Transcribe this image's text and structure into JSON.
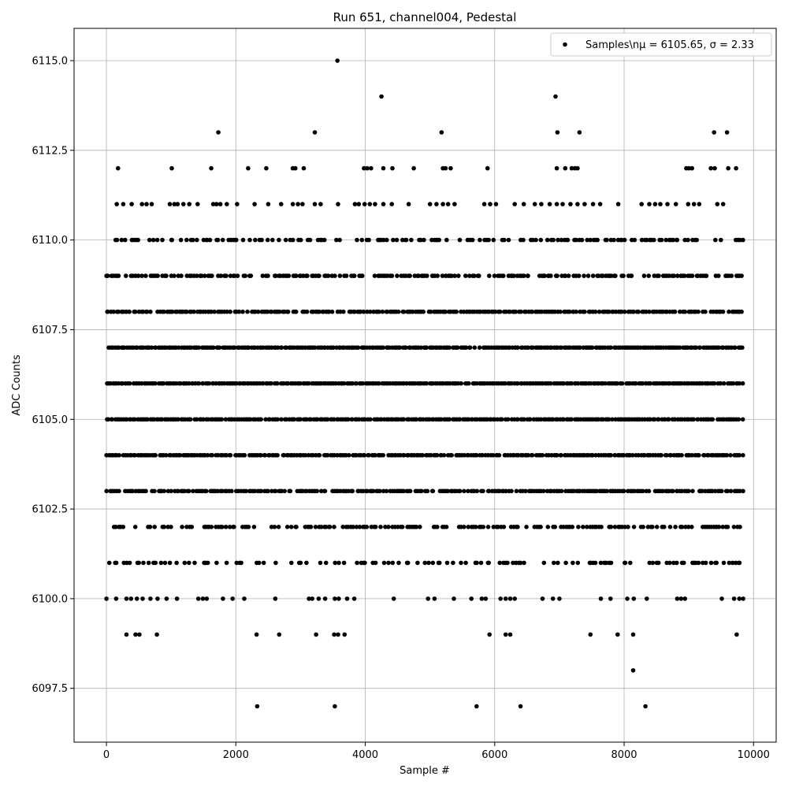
{
  "chart_data": {
    "type": "scatter",
    "title": "Run 651, channel004, Pedestal",
    "xlabel": "Sample #",
    "ylabel": "ADC Counts",
    "xlim": [
      -500,
      10350
    ],
    "ylim": [
      6096.0,
      6115.9
    ],
    "xticks": [
      0,
      2000,
      4000,
      6000,
      8000,
      10000
    ],
    "xtick_labels": [
      "0",
      "2000",
      "4000",
      "6000",
      "8000",
      "10000"
    ],
    "yticks": [
      6097.5,
      6100.0,
      6102.5,
      6105.0,
      6107.5,
      6110.0,
      6112.5,
      6115.0
    ],
    "ytick_labels": [
      "6097.5",
      "6100.0",
      "6102.5",
      "6105.0",
      "6107.5",
      "6110.0",
      "6112.5",
      "6115.0"
    ],
    "grid": true,
    "legend_position": "top-right",
    "series": [
      {
        "name": "Samples\\nμ = 6105.65, σ = 2.33",
        "color": "#000000",
        "marker": "circle",
        "bands": [
          {
            "y": 6110,
            "density": 0.5
          },
          {
            "y": 6109,
            "density": 0.75
          },
          {
            "y": 6108,
            "density": 0.85
          },
          {
            "y": 6107,
            "density": 0.97
          },
          {
            "y": 6106,
            "density": 0.98
          },
          {
            "y": 6105,
            "density": 0.96
          },
          {
            "y": 6104,
            "density": 0.92
          },
          {
            "y": 6103,
            "density": 0.85
          },
          {
            "y": 6102,
            "density": 0.55
          },
          {
            "y": 6101,
            "density": 0.4
          }
        ],
        "points": [
          [
            3570,
            6115
          ],
          [
            4250,
            6114
          ],
          [
            6940,
            6114
          ],
          [
            1730,
            6113
          ],
          [
            3220,
            6113
          ],
          [
            5180,
            6113
          ],
          [
            6970,
            6113
          ],
          [
            7310,
            6113
          ],
          [
            9390,
            6113
          ],
          [
            9590,
            6113
          ],
          [
            180,
            6112
          ],
          [
            1010,
            6112
          ],
          [
            1620,
            6112
          ],
          [
            2190,
            6112
          ],
          [
            2470,
            6112
          ],
          [
            2880,
            6112
          ],
          [
            2920,
            6112
          ],
          [
            3050,
            6112
          ],
          [
            3980,
            6112
          ],
          [
            4030,
            6112
          ],
          [
            4090,
            6112
          ],
          [
            4280,
            6112
          ],
          [
            4420,
            6112
          ],
          [
            4750,
            6112
          ],
          [
            5200,
            6112
          ],
          [
            5240,
            6112
          ],
          [
            5320,
            6112
          ],
          [
            5890,
            6112
          ],
          [
            6960,
            6112
          ],
          [
            7090,
            6112
          ],
          [
            7190,
            6112
          ],
          [
            7240,
            6112
          ],
          [
            7280,
            6112
          ],
          [
            8960,
            6112
          ],
          [
            9000,
            6112
          ],
          [
            9050,
            6112
          ],
          [
            9340,
            6112
          ],
          [
            9400,
            6112
          ],
          [
            9610,
            6112
          ],
          [
            9730,
            6112
          ],
          [
            160,
            6111
          ],
          [
            260,
            6111
          ],
          [
            390,
            6111
          ],
          [
            550,
            6111
          ],
          [
            620,
            6111
          ],
          [
            700,
            6111
          ],
          [
            980,
            6111
          ],
          [
            1050,
            6111
          ],
          [
            1100,
            6111
          ],
          [
            1190,
            6111
          ],
          [
            1280,
            6111
          ],
          [
            1410,
            6111
          ],
          [
            1650,
            6111
          ],
          [
            1700,
            6111
          ],
          [
            1760,
            6111
          ],
          [
            1860,
            6111
          ],
          [
            2020,
            6111
          ],
          [
            2290,
            6111
          ],
          [
            2500,
            6111
          ],
          [
            2700,
            6111
          ],
          [
            2880,
            6111
          ],
          [
            2960,
            6111
          ],
          [
            3030,
            6111
          ],
          [
            3220,
            6111
          ],
          [
            3310,
            6111
          ],
          [
            3580,
            6111
          ],
          [
            3840,
            6111
          ],
          [
            3900,
            6111
          ],
          [
            3990,
            6111
          ],
          [
            4070,
            6111
          ],
          [
            4150,
            6111
          ],
          [
            4280,
            6111
          ],
          [
            4410,
            6111
          ],
          [
            4670,
            6111
          ],
          [
            5000,
            6111
          ],
          [
            5100,
            6111
          ],
          [
            5200,
            6111
          ],
          [
            5280,
            6111
          ],
          [
            5380,
            6111
          ],
          [
            5840,
            6111
          ],
          [
            5930,
            6111
          ],
          [
            6020,
            6111
          ],
          [
            6310,
            6111
          ],
          [
            6450,
            6111
          ],
          [
            6620,
            6111
          ],
          [
            6720,
            6111
          ],
          [
            6850,
            6111
          ],
          [
            6960,
            6111
          ],
          [
            7050,
            6111
          ],
          [
            7170,
            6111
          ],
          [
            7280,
            6111
          ],
          [
            7390,
            6111
          ],
          [
            7520,
            6111
          ],
          [
            7630,
            6111
          ],
          [
            7910,
            6111
          ],
          [
            8270,
            6111
          ],
          [
            8390,
            6111
          ],
          [
            8480,
            6111
          ],
          [
            8560,
            6111
          ],
          [
            8670,
            6111
          ],
          [
            8800,
            6111
          ],
          [
            8990,
            6111
          ],
          [
            9080,
            6111
          ],
          [
            9160,
            6111
          ],
          [
            9440,
            6111
          ],
          [
            9530,
            6111
          ],
          [
            0,
            6100
          ],
          [
            150,
            6100
          ],
          [
            310,
            6100
          ],
          [
            380,
            6100
          ],
          [
            470,
            6100
          ],
          [
            560,
            6100
          ],
          [
            680,
            6100
          ],
          [
            790,
            6100
          ],
          [
            930,
            6100
          ],
          [
            1090,
            6100
          ],
          [
            1420,
            6100
          ],
          [
            1490,
            6100
          ],
          [
            1550,
            6100
          ],
          [
            1800,
            6100
          ],
          [
            1950,
            6100
          ],
          [
            2130,
            6100
          ],
          [
            2610,
            6100
          ],
          [
            3130,
            6100
          ],
          [
            3180,
            6100
          ],
          [
            3280,
            6100
          ],
          [
            3380,
            6100
          ],
          [
            3530,
            6100
          ],
          [
            3590,
            6100
          ],
          [
            3720,
            6100
          ],
          [
            3830,
            6100
          ],
          [
            4440,
            6100
          ],
          [
            4970,
            6100
          ],
          [
            5070,
            6100
          ],
          [
            5370,
            6100
          ],
          [
            5640,
            6100
          ],
          [
            5800,
            6100
          ],
          [
            5860,
            6100
          ],
          [
            6090,
            6100
          ],
          [
            6170,
            6100
          ],
          [
            6240,
            6100
          ],
          [
            6310,
            6100
          ],
          [
            6740,
            6100
          ],
          [
            6900,
            6100
          ],
          [
            7000,
            6100
          ],
          [
            7640,
            6100
          ],
          [
            7790,
            6100
          ],
          [
            8050,
            6100
          ],
          [
            8150,
            6100
          ],
          [
            8350,
            6100
          ],
          [
            8820,
            6100
          ],
          [
            8880,
            6100
          ],
          [
            8940,
            6100
          ],
          [
            9510,
            6100
          ],
          [
            9700,
            6100
          ],
          [
            9780,
            6100
          ],
          [
            9840,
            6100
          ],
          [
            310,
            6099
          ],
          [
            450,
            6099
          ],
          [
            510,
            6099
          ],
          [
            780,
            6099
          ],
          [
            2320,
            6099
          ],
          [
            2670,
            6099
          ],
          [
            3240,
            6099
          ],
          [
            3520,
            6099
          ],
          [
            3580,
            6099
          ],
          [
            3680,
            6099
          ],
          [
            5920,
            6099
          ],
          [
            6170,
            6099
          ],
          [
            6240,
            6099
          ],
          [
            7480,
            6099
          ],
          [
            7900,
            6099
          ],
          [
            8140,
            6099
          ],
          [
            9740,
            6099
          ],
          [
            8140,
            6098
          ],
          [
            2330,
            6097
          ],
          [
            3530,
            6097
          ],
          [
            5720,
            6097
          ],
          [
            6400,
            6097
          ],
          [
            8330,
            6097
          ]
        ]
      }
    ]
  }
}
